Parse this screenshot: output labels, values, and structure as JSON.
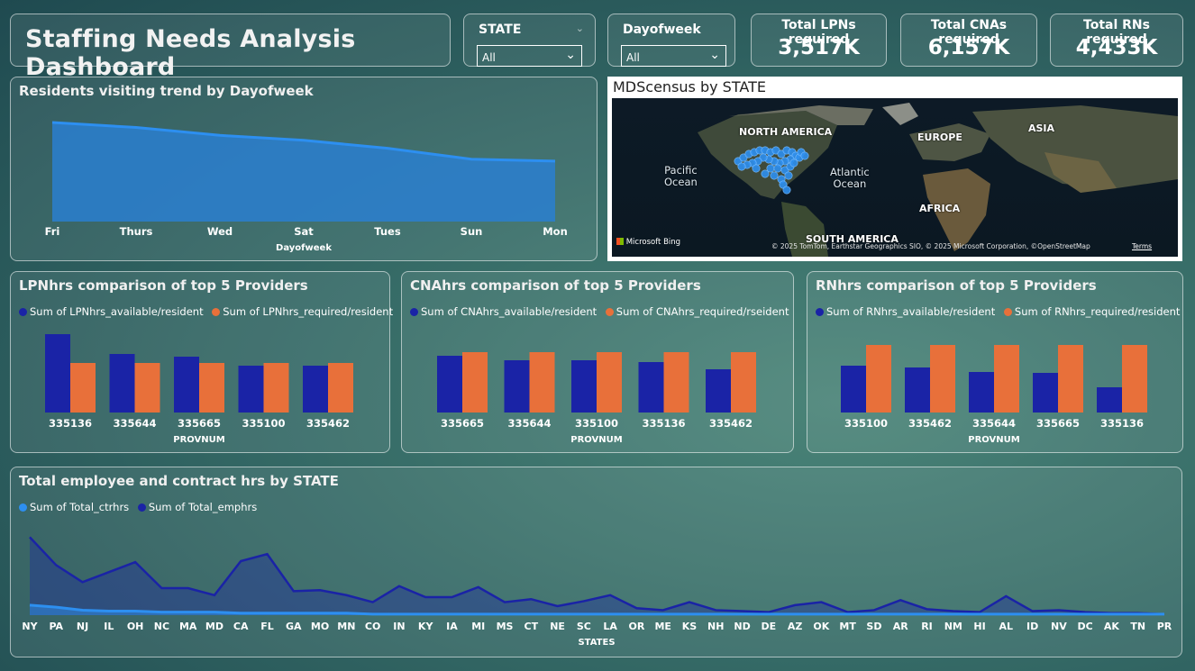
{
  "header": {
    "title": "Staffing Needs Analysis Dashboard"
  },
  "slicers": [
    {
      "label": "STATE",
      "value": "All"
    },
    {
      "label": "Dayofweek",
      "value": "All"
    }
  ],
  "kpis": [
    {
      "label": "Total LPNs required",
      "value": "3,517K"
    },
    {
      "label": "Total CNAs required",
      "value": "6,157K"
    },
    {
      "label": "Total RNs required",
      "value": "4,433K"
    }
  ],
  "colors": {
    "blue": "#2d8ff0",
    "navy": "#1a23a6",
    "orange": "#e8703a"
  },
  "trend": {
    "title": "Residents visiting trend by Dayofweek",
    "chart_data": {
      "type": "area",
      "categories": [
        "Fri",
        "Thurs",
        "Wed",
        "Sat",
        "Tues",
        "Sun",
        "Mon"
      ],
      "values": [
        100,
        95,
        87,
        82,
        74,
        63,
        61
      ],
      "xlabel": "Dayofweek"
    }
  },
  "map": {
    "title": "MDScensus by STATE",
    "labels": {
      "north_america": "NORTH AMERICA",
      "europe": "EUROPE",
      "asia": "ASIA",
      "africa": "AFRICA",
      "south_america": "SOUTH AMERICA"
    },
    "oceans": {
      "pacific": "Pacific\nOcean",
      "atlantic": "Atlantic\nOcean"
    },
    "brand": "Microsoft Bing",
    "attribution": "© 2025 TomTom, Earthstar Geographics SIO, © 2025 Microsoft Corporation, ©OpenStreetMap",
    "terms": "Terms"
  },
  "lpn": {
    "title": "LPNhrs comparison of top 5 Providers",
    "legend": [
      "Sum of LPNhrs_available/resident",
      "Sum of LPNhrs_required/resident"
    ],
    "chart_data": {
      "type": "bar",
      "categories": [
        "335136",
        "335644",
        "335665",
        "335100",
        "335462"
      ],
      "series": [
        {
          "name": "Sum of LPNhrs_available/resident",
          "values": [
            0.87,
            0.65,
            0.62,
            0.52,
            0.52
          ]
        },
        {
          "name": "Sum of LPNhrs_required/resident",
          "values": [
            0.55,
            0.55,
            0.55,
            0.55,
            0.55
          ]
        }
      ],
      "ylim": [
        0,
        1
      ],
      "xlabel": "PROVNUM"
    }
  },
  "cna": {
    "title": "CNAhrs comparison of top 5 Providers",
    "legend": [
      "Sum of CNAhrs_available/resident",
      "Sum of CNAhrs_required/rseident"
    ],
    "chart_data": {
      "type": "bar",
      "categories": [
        "335665",
        "335644",
        "335100",
        "335136",
        "335462"
      ],
      "series": [
        {
          "name": "Sum of CNAhrs_available/resident",
          "values": [
            0.63,
            0.58,
            0.58,
            0.56,
            0.48
          ]
        },
        {
          "name": "Sum of CNAhrs_required/rseident",
          "values": [
            0.67,
            0.67,
            0.67,
            0.67,
            0.67
          ]
        }
      ],
      "ylim": [
        0,
        1
      ],
      "xlabel": "PROVNUM"
    }
  },
  "rn": {
    "title": "RNhrs comparison of top 5 Providers",
    "legend": [
      "Sum of RNhrs_available/resident",
      "Sum of RNhrs_required/resident"
    ],
    "chart_data": {
      "type": "bar",
      "categories": [
        "335100",
        "335462",
        "335644",
        "335665",
        "335136"
      ],
      "series": [
        {
          "name": "Sum of RNhrs_available/resident",
          "values": [
            0.52,
            0.5,
            0.45,
            0.44,
            0.28
          ]
        },
        {
          "name": "Sum of RNhrs_required/resident",
          "values": [
            0.75,
            0.75,
            0.75,
            0.75,
            0.75
          ]
        }
      ],
      "ylim": [
        0,
        1
      ],
      "xlabel": "PROVNUM"
    }
  },
  "states": {
    "title": "Total employee and contract hrs by STATE",
    "legend": [
      "Sum of Total_ctrhrs",
      "Sum of Total_emphrs"
    ],
    "chart_data": {
      "type": "area",
      "categories": [
        "NY",
        "PA",
        "NJ",
        "IL",
        "OH",
        "NC",
        "MA",
        "MD",
        "CA",
        "FL",
        "GA",
        "MO",
        "MN",
        "CO",
        "IN",
        "KY",
        "IA",
        "MI",
        "MS",
        "CT",
        "NE",
        "SC",
        "LA",
        "OR",
        "ME",
        "KS",
        "NH",
        "ND",
        "DE",
        "AZ",
        "OK",
        "MT",
        "SD",
        "AR",
        "RI",
        "NM",
        "HI",
        "AL",
        "ID",
        "NV",
        "DC",
        "AK",
        "TN",
        "PR"
      ],
      "series": [
        {
          "name": "Sum of Total_ctrhrs",
          "values": [
            10,
            8,
            5,
            4,
            4,
            3,
            3,
            3,
            2,
            2,
            2,
            2,
            2,
            1,
            1,
            1,
            1,
            1,
            1,
            1,
            1,
            1,
            1,
            1,
            1,
            1,
            1,
            1,
            1,
            1,
            1,
            1,
            1,
            1,
            1,
            1,
            1,
            1,
            1,
            1,
            1,
            1,
            1,
            1
          ]
        },
        {
          "name": "Sum of Total_emphrs",
          "values": [
            78,
            50,
            33,
            43,
            53,
            27,
            27,
            20,
            54,
            61,
            24,
            25,
            20,
            13,
            29,
            18,
            18,
            28,
            13,
            16,
            9,
            14,
            20,
            7,
            5,
            13,
            5,
            4,
            3,
            10,
            13,
            3,
            5,
            15,
            6,
            4,
            3,
            19,
            4,
            5,
            3,
            2,
            2,
            1
          ]
        }
      ],
      "ylim": [
        0,
        90
      ],
      "xlabel": "STATES"
    }
  }
}
